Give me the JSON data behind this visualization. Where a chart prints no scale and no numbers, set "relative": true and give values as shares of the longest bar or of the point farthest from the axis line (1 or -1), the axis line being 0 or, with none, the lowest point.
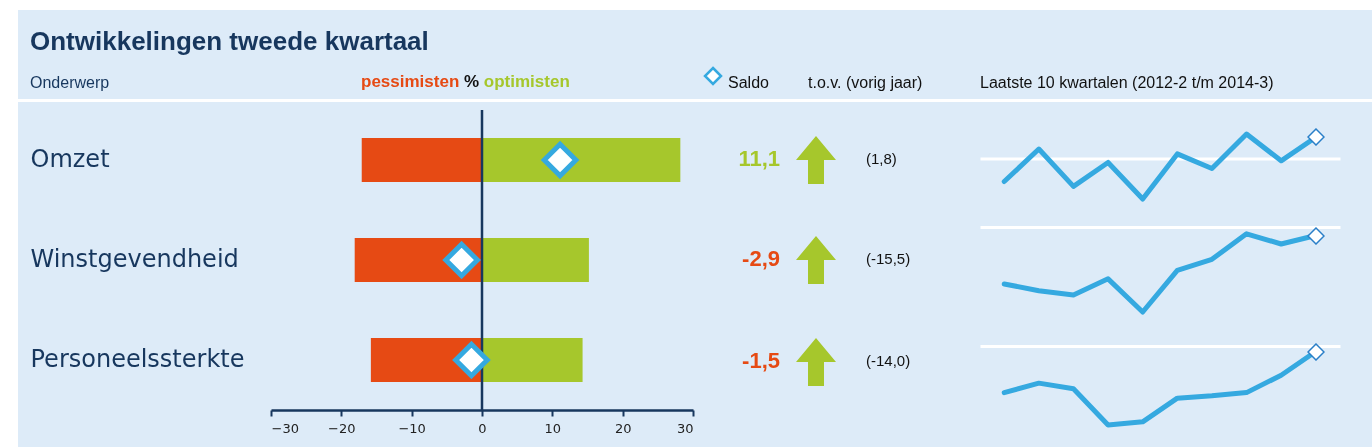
{
  "chart_data": [
    {
      "type": "bar",
      "title": "Ontwikkelingen tweede kwartaal",
      "ylabel": "Onderwerp",
      "xlabel": "%",
      "orientation": "horizontal",
      "stacked": true,
      "categories": [
        "Omzet",
        "Winstgevendheid",
        "Personeelssterkte"
      ],
      "series": [
        {
          "name": "pessimisten",
          "color": "#e64a14",
          "values": [
            -17.1,
            -18.1,
            -15.8
          ]
        },
        {
          "name": "optimisten",
          "color": "#a6c72c",
          "values": [
            28.2,
            15.2,
            14.3
          ]
        },
        {
          "name": "Saldo",
          "type": "scatter",
          "color": "#35a9e0",
          "values": [
            11.1,
            -2.9,
            -1.5
          ],
          "value_labels": [
            "11,1",
            "-2,9",
            "-1,5"
          ]
        }
      ],
      "xlim": [
        -30,
        30
      ],
      "xticks": [
        -30,
        -20,
        -10,
        0,
        10,
        20,
        30
      ],
      "marker": "diamond",
      "legend": "top",
      "grid": false,
      "ref_lines": [
        {
          "axis": "x",
          "value": 0,
          "color": "#17375e"
        }
      ],
      "annotations": [
        "t.o.v. (vorig jaar)",
        "(1,8)",
        "(-15,5)",
        "(-14,0)"
      ]
    },
    {
      "type": "line",
      "title": "Laatste 10 kwartalen (2012-2 t/m 2014-3)",
      "relative": true,
      "categories": [
        null,
        null,
        null,
        null,
        null,
        null,
        null,
        null,
        null,
        null
      ],
      "series": [
        {
          "color": "#35a9e0",
          "values": [
            -0.57,
            0.23,
            -0.69,
            -0.1,
            -1,
            0.11,
            -0.25,
            0.6,
            -0.06,
            0.52
          ]
        }
      ]
    },
    {
      "type": "line",
      "relative": true,
      "categories": [
        null,
        null,
        null,
        null,
        null,
        null,
        null,
        null,
        null,
        null
      ],
      "series": [
        {
          "color": "#35a9e0",
          "values": [
            -0.67,
            -0.75,
            -0.8,
            -0.61,
            -1,
            -0.51,
            -0.38,
            -0.08,
            -0.2,
            -0.1
          ]
        }
      ]
    },
    {
      "type": "line",
      "relative": true,
      "categories": [
        null,
        null,
        null,
        null,
        null,
        null,
        null,
        null,
        null,
        null
      ],
      "series": [
        {
          "color": "#35a9e0",
          "values": [
            -0.59,
            -0.47,
            -0.54,
            -1,
            -0.96,
            -0.66,
            -0.63,
            -0.59,
            -0.37,
            -0.07
          ]
        }
      ]
    }
  ]
}
